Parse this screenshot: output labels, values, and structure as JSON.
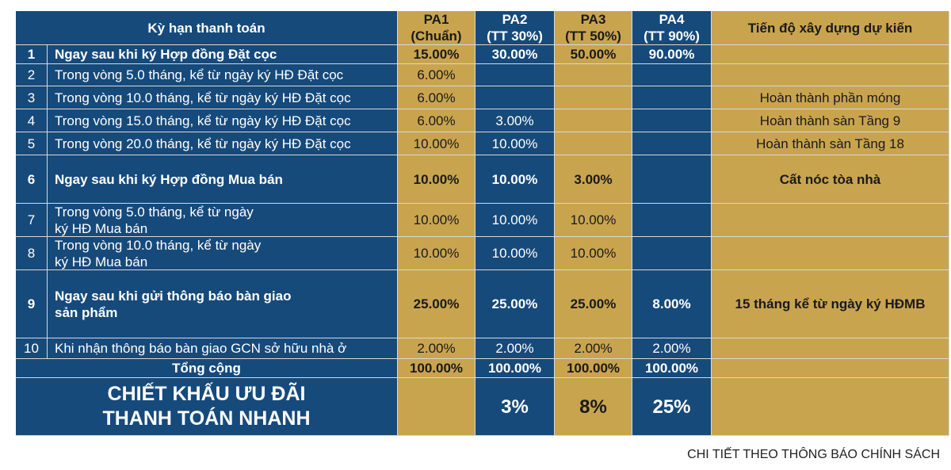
{
  "table": {
    "header": {
      "term": "Kỳ hạn thanh toán",
      "pa1": "PA1\n(Chuẩn)",
      "pa2": "PA2\n(TT 30%)",
      "pa3": "PA3\n(TT 50%)",
      "pa4": "PA4\n(TT 90%)",
      "progress": "Tiến độ xây dựng dự kiến"
    },
    "rows": [
      {
        "no": "1",
        "term": "Ngay sau khi ký Hợp đồng Đặt cọc",
        "pa1": "15.00%",
        "pa2": "30.00%",
        "pa3": "50.00%",
        "pa4": "90.00%"
      },
      {
        "no": "2",
        "term": "Trong vòng 5.0 tháng, kể từ ngày ký HĐ Đặt cọc",
        "pa1": "6.00%"
      },
      {
        "no": "3",
        "term": "Trong vòng 10.0 tháng, kể từ ngày ký HĐ Đặt cọc",
        "pa1": "6.00%",
        "progress": "Hoàn thành phần móng"
      },
      {
        "no": "4",
        "term": "Trong vòng 15.0 tháng, kể từ ngày ký HĐ Đặt cọc",
        "pa1": "6.00%",
        "pa2": "3.00%",
        "progress": "Hoàn thành sàn Tầng 9"
      },
      {
        "no": "5",
        "term": "Trong vòng 20.0 tháng, kể từ ngày ký HĐ Đặt cọc",
        "pa1": "10.00%",
        "pa2": "10.00%",
        "progress": "Hoàn thành sàn Tầng 18"
      },
      {
        "no": "6",
        "term": "Ngay sau khi ký Hợp đồng Mua bán",
        "pa1": "10.00%",
        "pa2": "10.00%",
        "pa3": "3.00%",
        "progress": "Cất nóc tòa nhà"
      },
      {
        "no": "7",
        "term": "Trong vòng 5.0 tháng, kể từ ngày\nký HĐ Mua bán",
        "pa1": "10.00%",
        "pa2": "10.00%",
        "pa3": "10.00%"
      },
      {
        "no": "8",
        "term": "Trong vòng 10.0 tháng, kể từ ngày\nký HĐ Mua bán",
        "pa1": "10.00%",
        "pa2": "10.00%",
        "pa3": "10.00%"
      },
      {
        "no": "9",
        "term": "Ngay sau khi gửi thông báo bàn giao\nsản phẩm",
        "pa1": "25.00%",
        "pa2": "25.00%",
        "pa3": "25.00%",
        "pa4": "8.00%",
        "progress": "15 tháng kể từ ngày ký HĐMB"
      },
      {
        "no": "10",
        "term": "Khi nhận thông báo bàn giao GCN sở hữu nhà ở",
        "pa1": "2.00%",
        "pa2": "2.00%",
        "pa3": "2.00%",
        "pa4": "2.00%"
      }
    ],
    "total": {
      "term": "Tổng cộng",
      "pa1": "100.00%",
      "pa2": "100.00%",
      "pa3": "100.00%",
      "pa4": "100.00%"
    },
    "discount": {
      "term": "CHIẾT KHẤU ƯU ĐÃI\nTHANH TOÁN NHANH",
      "pa2": "3%",
      "pa3": "8%",
      "pa4": "25%"
    }
  },
  "footer": {
    "note": "CHI TIẾT THEO THÔNG BÁO CHÍNH SÁCH"
  }
}
